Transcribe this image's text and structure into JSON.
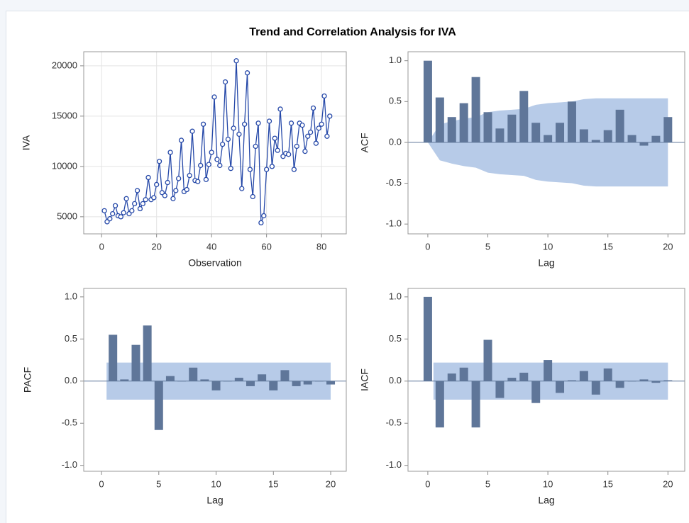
{
  "title": "Trend and Correlation Analysis for IVA",
  "chart_data": [
    {
      "type": "line",
      "xlabel": "Observation",
      "ylabel": "IVA",
      "x": [
        1,
        2,
        3,
        4,
        5,
        6,
        7,
        8,
        9,
        10,
        11,
        12,
        13,
        14,
        15,
        16,
        17,
        18,
        19,
        20,
        21,
        22,
        23,
        24,
        25,
        26,
        27,
        28,
        29,
        30,
        31,
        32,
        33,
        34,
        35,
        36,
        37,
        38,
        39,
        40,
        41,
        42,
        43,
        44,
        45,
        46,
        47,
        48,
        49,
        50,
        51,
        52,
        53,
        54,
        55,
        56,
        57,
        58,
        59,
        60,
        61,
        62,
        63,
        64,
        65,
        66,
        67,
        68,
        69,
        70,
        71,
        72,
        73,
        74,
        75,
        76,
        77,
        78,
        79,
        80,
        81,
        82,
        83
      ],
      "values": [
        5600,
        4500,
        4800,
        5300,
        6100,
        5100,
        5000,
        5400,
        6800,
        5300,
        5600,
        6300,
        7600,
        5800,
        6300,
        6700,
        8900,
        6700,
        6900,
        8200,
        10500,
        7400,
        7100,
        8400,
        11400,
        6800,
        7600,
        8800,
        12600,
        7500,
        7700,
        9100,
        13500,
        8600,
        8500,
        10100,
        14200,
        8700,
        10200,
        11400,
        16900,
        10700,
        10100,
        12200,
        18400,
        12700,
        9800,
        13800,
        20500,
        13200,
        7800,
        14200,
        19300,
        9700,
        7000,
        12000,
        14300,
        4400,
        5100,
        9700,
        14500,
        10000,
        12800,
        11600,
        15700,
        11000,
        11300,
        11200,
        14300,
        9700,
        12000,
        14300,
        14100,
        11500,
        13000,
        13400,
        15800,
        12300,
        13800,
        14200,
        17000,
        13000,
        15000
      ],
      "color": "#2548a8",
      "grid": true,
      "xlim": [
        -6.5,
        89
      ],
      "ylim": [
        3300,
        21400
      ],
      "xticks": [
        0,
        20,
        40,
        60,
        80
      ],
      "yticks": [
        5000,
        10000,
        15000,
        20000
      ]
    },
    {
      "type": "bar",
      "xlabel": "Lag",
      "ylabel": "ACF",
      "x": [
        0,
        1,
        2,
        3,
        4,
        5,
        6,
        7,
        8,
        9,
        10,
        11,
        12,
        13,
        14,
        15,
        16,
        17,
        18,
        19,
        20
      ],
      "values": [
        1.0,
        0.55,
        0.31,
        0.48,
        0.8,
        0.37,
        0.17,
        0.34,
        0.63,
        0.24,
        0.09,
        0.24,
        0.5,
        0.16,
        0.03,
        0.15,
        0.4,
        0.09,
        -0.04,
        0.08,
        0.31
      ],
      "band_upper": [
        0,
        0.22,
        0.26,
        0.29,
        0.31,
        0.37,
        0.39,
        0.4,
        0.41,
        0.46,
        0.48,
        0.49,
        0.5,
        0.53,
        0.54,
        0.54,
        0.54,
        0.54,
        0.54,
        0.54,
        0.54
      ],
      "band_lower": [
        0,
        -0.22,
        -0.26,
        -0.29,
        -0.31,
        -0.37,
        -0.39,
        -0.4,
        -0.41,
        -0.46,
        -0.48,
        -0.49,
        -0.5,
        -0.53,
        -0.54,
        -0.54,
        -0.54,
        -0.54,
        -0.54,
        -0.54,
        -0.54
      ],
      "color": "#5f7699",
      "band_color": "#b7cbe8",
      "refline": 0,
      "xlim": [
        -1.65,
        21.4
      ],
      "ylim": [
        -1.12,
        1.11
      ],
      "xticks": [
        0,
        5,
        10,
        15,
        20
      ],
      "yticks": [
        {
          "value": -1,
          "label": "-1.0"
        },
        {
          "value": -0.5,
          "label": "-0.5"
        },
        {
          "value": 0,
          "label": "0.0"
        },
        {
          "value": 0.5,
          "label": "0.5"
        },
        {
          "value": 1,
          "label": "1.0"
        }
      ]
    },
    {
      "type": "bar",
      "xlabel": "Lag",
      "ylabel": "PACF",
      "x": [
        1,
        2,
        3,
        4,
        5,
        6,
        7,
        8,
        9,
        10,
        11,
        12,
        13,
        14,
        15,
        16,
        17,
        18,
        19,
        20
      ],
      "values": [
        0.55,
        0.02,
        0.43,
        0.66,
        -0.58,
        0.06,
        0.0,
        0.16,
        0.02,
        -0.11,
        0.0,
        0.04,
        -0.06,
        0.08,
        -0.11,
        0.13,
        -0.06,
        -0.04,
        0.0,
        -0.04
      ],
      "band_upper": [
        0.22,
        0.22,
        0.22,
        0.22,
        0.22,
        0.22,
        0.22,
        0.22,
        0.22,
        0.22,
        0.22,
        0.22,
        0.22,
        0.22,
        0.22,
        0.22,
        0.22,
        0.22,
        0.22,
        0.22
      ],
      "band_lower": [
        -0.22,
        -0.22,
        -0.22,
        -0.22,
        -0.22,
        -0.22,
        -0.22,
        -0.22,
        -0.22,
        -0.22,
        -0.22,
        -0.22,
        -0.22,
        -0.22,
        -0.22,
        -0.22,
        -0.22,
        -0.22,
        -0.22,
        -0.22
      ],
      "color": "#5f7699",
      "band_color": "#b7cbe8",
      "refline": 0,
      "xlim": [
        -1.55,
        21.36
      ],
      "ylim": [
        -1.07,
        1.1
      ],
      "xticks": [
        0,
        5,
        10,
        15,
        20
      ],
      "yticks": [
        {
          "value": -1,
          "label": "-1.0"
        },
        {
          "value": -0.5,
          "label": "-0.5"
        },
        {
          "value": 0,
          "label": "0.0"
        },
        {
          "value": 0.5,
          "label": "0.5"
        },
        {
          "value": 1,
          "label": "1.0"
        }
      ]
    },
    {
      "type": "bar",
      "xlabel": "Lag",
      "ylabel": "IACF",
      "x": [
        0,
        1,
        2,
        3,
        4,
        5,
        6,
        7,
        8,
        9,
        10,
        11,
        12,
        13,
        14,
        15,
        16,
        17,
        18,
        19,
        20
      ],
      "values": [
        1.0,
        -0.55,
        0.09,
        0.16,
        -0.55,
        0.49,
        -0.2,
        0.04,
        0.1,
        -0.26,
        0.25,
        -0.14,
        0.01,
        0.12,
        -0.16,
        0.15,
        -0.08,
        0.0,
        0.02,
        -0.02,
        0.01
      ],
      "band_upper": [
        null,
        0.22,
        0.22,
        0.22,
        0.22,
        0.22,
        0.22,
        0.22,
        0.22,
        0.22,
        0.22,
        0.22,
        0.22,
        0.22,
        0.22,
        0.22,
        0.22,
        0.22,
        0.22,
        0.22,
        0.22
      ],
      "band_lower": [
        null,
        -0.22,
        -0.22,
        -0.22,
        -0.22,
        -0.22,
        -0.22,
        -0.22,
        -0.22,
        -0.22,
        -0.22,
        -0.22,
        -0.22,
        -0.22,
        -0.22,
        -0.22,
        -0.22,
        -0.22,
        -0.22,
        -0.22,
        -0.22
      ],
      "color": "#5f7699",
      "band_color": "#b7cbe8",
      "refline": 0,
      "xlim": [
        -1.65,
        21.4
      ],
      "ylim": [
        -1.07,
        1.1
      ],
      "xticks": [
        0,
        5,
        10,
        15,
        20
      ],
      "yticks": [
        {
          "value": -1,
          "label": "-1.0"
        },
        {
          "value": -0.5,
          "label": "-0.5"
        },
        {
          "value": 0,
          "label": "0.0"
        },
        {
          "value": 0.5,
          "label": "0.5"
        },
        {
          "value": 1,
          "label": "1.0"
        }
      ]
    }
  ]
}
